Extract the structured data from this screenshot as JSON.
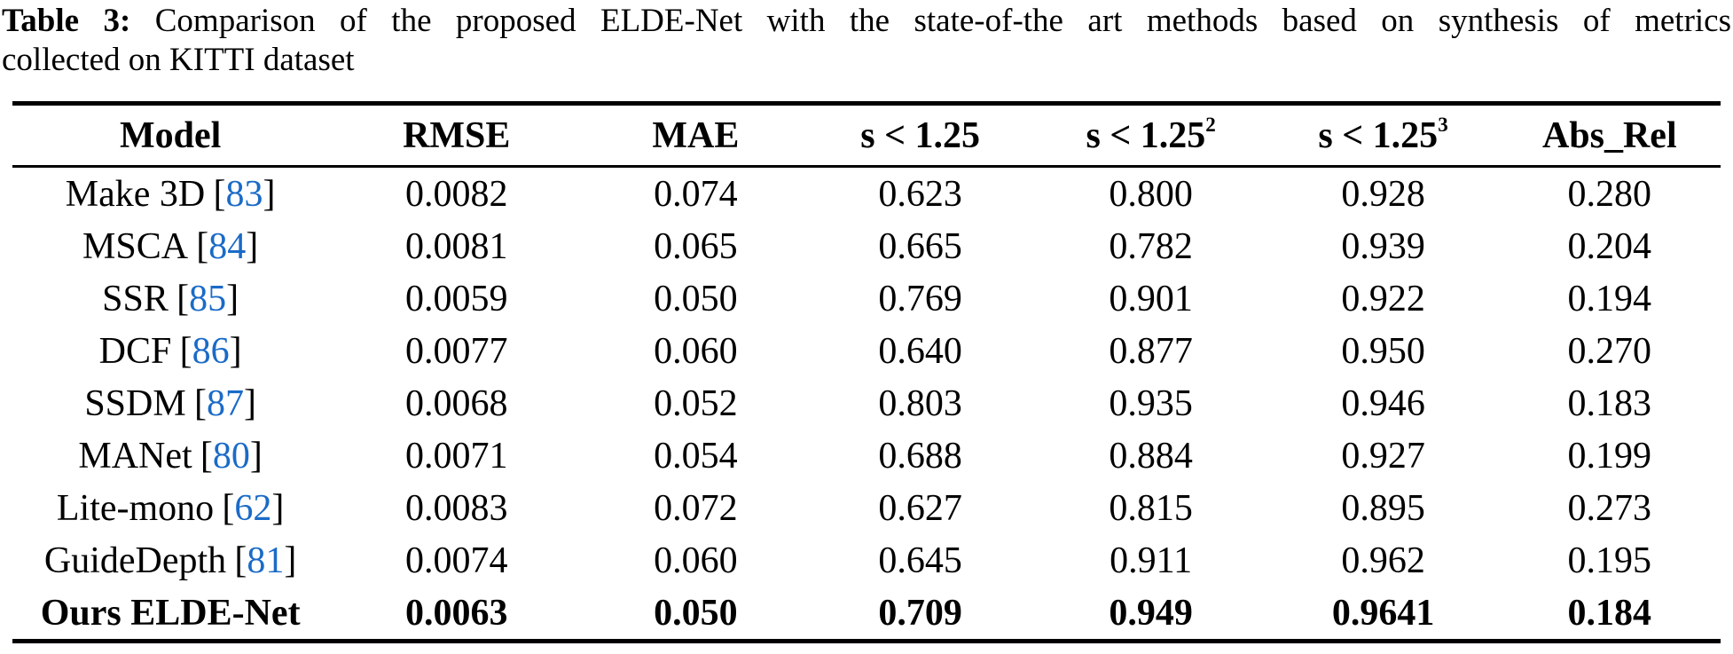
{
  "caption": {
    "label": "Table 3:",
    "line1": " Comparison of the proposed ELDE-Net with the state-of-the art methods based on synthesis of metrics",
    "line2": "collected on KITTI dataset"
  },
  "colors": {
    "citation_blue": "#1a6bc7",
    "text": "#000000",
    "rule": "#000000"
  },
  "table": {
    "cite_open": "[",
    "cite_close": "]",
    "headers": [
      {
        "text": "Model"
      },
      {
        "text": "RMSE"
      },
      {
        "text": "MAE"
      },
      {
        "text": "s < 1.25"
      },
      {
        "text": "s < 1.25",
        "sup": "2"
      },
      {
        "text": "s < 1.25",
        "sup": "3"
      },
      {
        "text": "Abs_Rel"
      }
    ],
    "rows": [
      {
        "model": "Make 3D",
        "ref": "83",
        "rmse": "0.0082",
        "mae": "0.074",
        "s1": "0.623",
        "s2": "0.800",
        "s3": "0.928",
        "abs_rel": "0.280"
      },
      {
        "model": "MSCA",
        "ref": "84",
        "rmse": "0.0081",
        "mae": "0.065",
        "s1": "0.665",
        "s2": "0.782",
        "s3": "0.939",
        "abs_rel": "0.204"
      },
      {
        "model": "SSR",
        "ref": "85",
        "rmse": "0.0059",
        "mae": "0.050",
        "s1": "0.769",
        "s2": "0.901",
        "s3": "0.922",
        "abs_rel": "0.194"
      },
      {
        "model": "DCF",
        "ref": "86",
        "rmse": "0.0077",
        "mae": "0.060",
        "s1": "0.640",
        "s2": "0.877",
        "s3": "0.950",
        "abs_rel": "0.270"
      },
      {
        "model": "SSDM",
        "ref": "87",
        "rmse": "0.0068",
        "mae": "0.052",
        "s1": "0.803",
        "s2": "0.935",
        "s3": "0.946",
        "abs_rel": "0.183"
      },
      {
        "model": "MANet",
        "ref": "80",
        "rmse": "0.0071",
        "mae": "0.054",
        "s1": "0.688",
        "s2": "0.884",
        "s3": "0.927",
        "abs_rel": "0.199"
      },
      {
        "model": "Lite-mono",
        "ref": "62",
        "rmse": "0.0083",
        "mae": "0.072",
        "s1": "0.627",
        "s2": "0.815",
        "s3": "0.895",
        "abs_rel": "0.273"
      },
      {
        "model": "GuideDepth",
        "ref": "81",
        "rmse": "0.0074",
        "mae": "0.060",
        "s1": "0.645",
        "s2": "0.911",
        "s3": "0.962",
        "abs_rel": "0.195"
      },
      {
        "model": "Ours ELDE-Net",
        "rmse": "0.0063",
        "mae": "0.050",
        "s1": "0.709",
        "s2": "0.949",
        "s3": "0.9641",
        "abs_rel": "0.184"
      }
    ]
  }
}
